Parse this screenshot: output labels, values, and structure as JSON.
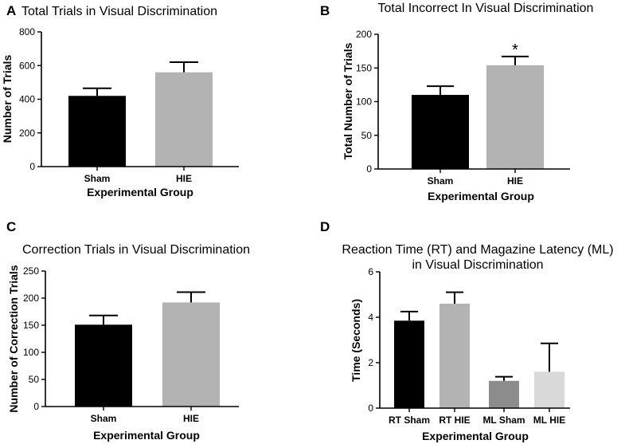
{
  "figure": {
    "panels_order": [
      "A",
      "B",
      "C",
      "D"
    ]
  },
  "chart_data": [
    {
      "panel": "A",
      "type": "bar",
      "title": "Total Trials in Visual Discrimination",
      "xlabel": "Experimental Group",
      "ylabel": "Number of Trials",
      "ylim": [
        0,
        800
      ],
      "yticks": [
        0,
        200,
        400,
        600,
        800
      ],
      "categories": [
        "Sham",
        "HIE"
      ],
      "values": [
        420,
        560
      ],
      "errors": [
        45,
        60
      ],
      "colors": [
        "#000000",
        "#b3b3b3"
      ],
      "annotations": [
        "",
        ""
      ]
    },
    {
      "panel": "B",
      "type": "bar",
      "title": "Total Incorrect In Visual Discrimination",
      "xlabel": "Experimental Group",
      "ylabel": "Total Number of Trials",
      "ylim": [
        0,
        200
      ],
      "yticks": [
        0,
        50,
        100,
        150,
        200
      ],
      "categories": [
        "Sham",
        "HIE"
      ],
      "values": [
        110,
        154
      ],
      "errors": [
        13,
        13
      ],
      "colors": [
        "#000000",
        "#b3b3b3"
      ],
      "annotations": [
        "",
        "*"
      ]
    },
    {
      "panel": "C",
      "type": "bar",
      "title": "Correction Trials in Visual Discrimination",
      "xlabel": "Experimental Group",
      "ylabel": "Number of Correction Trials",
      "ylim": [
        0,
        250
      ],
      "yticks": [
        0,
        50,
        100,
        150,
        200,
        250
      ],
      "categories": [
        "Sham",
        "HIE"
      ],
      "values": [
        151,
        192
      ],
      "errors": [
        17,
        19
      ],
      "colors": [
        "#000000",
        "#b3b3b3"
      ],
      "annotations": [
        "",
        ""
      ]
    },
    {
      "panel": "D",
      "type": "bar",
      "title": "Reaction Time (RT) and Magazine Latency (ML)\nin Visual Discrimination",
      "xlabel": "Experimental Group",
      "ylabel": "Time (Seconds)",
      "ylim": [
        0,
        6
      ],
      "yticks": [
        0,
        2,
        4,
        6
      ],
      "categories": [
        "RT Sham",
        "RT HIE",
        "ML Sham",
        "ML HIE"
      ],
      "values": [
        3.85,
        4.6,
        1.2,
        1.6
      ],
      "errors": [
        0.4,
        0.5,
        0.18,
        1.25
      ],
      "colors": [
        "#000000",
        "#b3b3b3",
        "#8c8c8c",
        "#d9d9d9"
      ],
      "annotations": [
        "",
        "",
        "",
        ""
      ]
    }
  ]
}
